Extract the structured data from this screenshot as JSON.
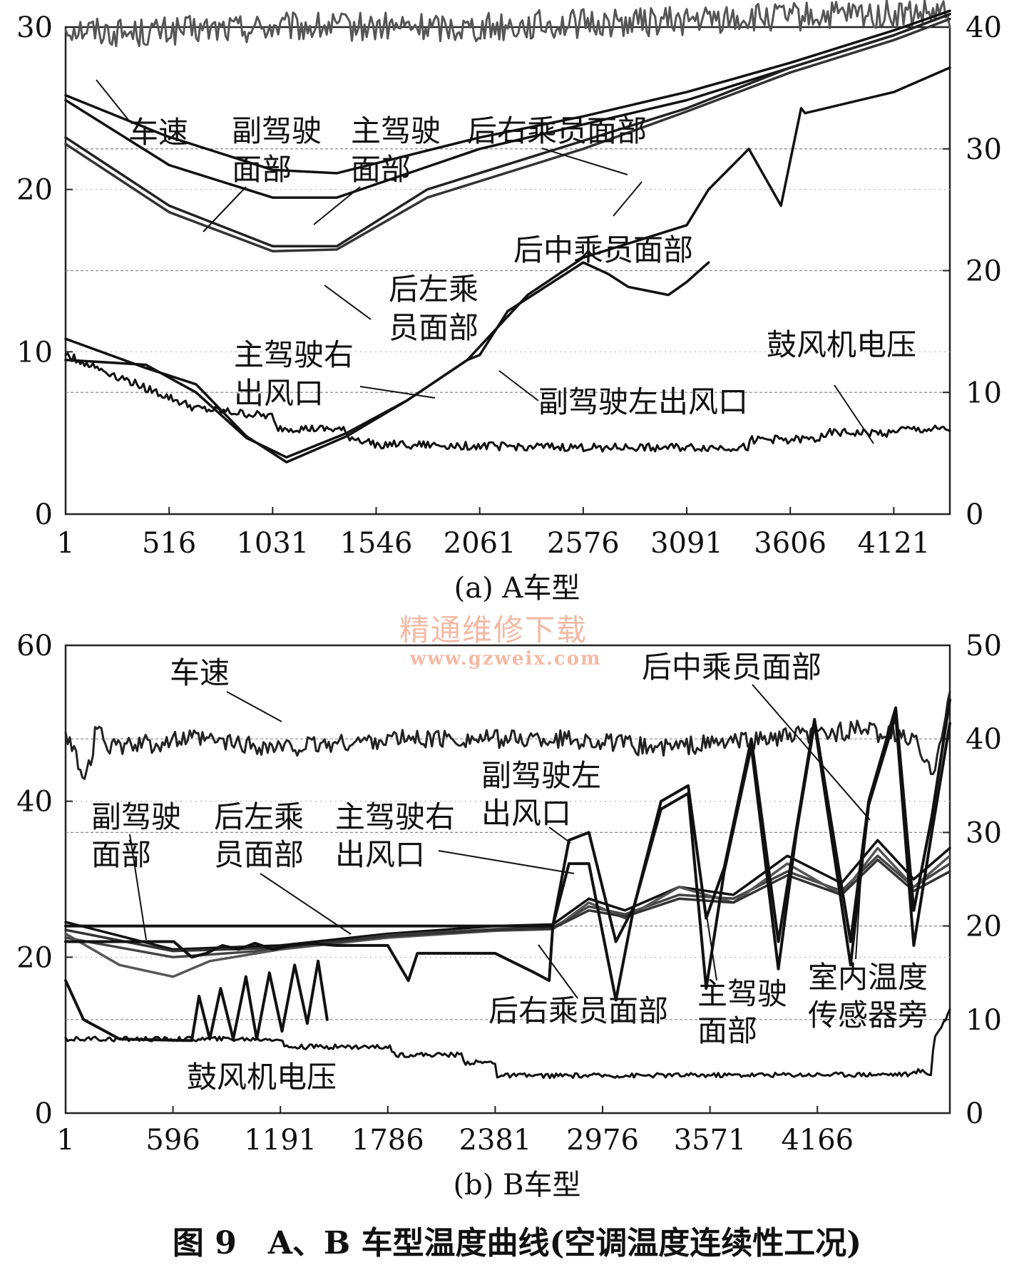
{
  "figure_title": "图 9　A、B 车型温度曲线(空调温度连续性工况)",
  "watermark": {
    "line1": "精通维修下载",
    "line2": "www.gzweix.com"
  },
  "chart_data": [
    {
      "type": "line",
      "caption": "(a) A车型",
      "x_ticks": [
        "1",
        "516",
        "1031",
        "1546",
        "2061",
        "2576",
        "3091",
        "3606",
        "4121"
      ],
      "xlim": [
        1,
        4400
      ],
      "y_left_ticks": [
        "0",
        "10",
        "20",
        "30"
      ],
      "ylim_left": [
        0,
        30
      ],
      "y_right_ticks": [
        "0",
        "10",
        "20",
        "30",
        "40"
      ],
      "ylim_right": [
        0,
        40
      ],
      "grid": true,
      "labels": {
        "speed": "车速",
        "pass_face": [
          "副驾驶",
          "面部"
        ],
        "driver_face": [
          "主驾驶",
          "面部"
        ],
        "rear_right": "后右乘员面部",
        "rear_mid": "后中乘员面部",
        "rear_left": [
          "后左乘",
          "员面部"
        ],
        "driver_right_vent": [
          "主驾驶右",
          "出风口"
        ],
        "pass_left_vent": "副驾驶左出风口",
        "blower": "鼓风机电压"
      },
      "series": [
        {
          "key": "speed",
          "axis": "right",
          "noise": 1.2,
          "width": 3,
          "color": "#555555",
          "x": [
            1,
            300,
            1000,
            2000,
            3000,
            4000,
            4400
          ],
          "y": [
            40,
            39.5,
            40,
            40,
            40.5,
            41,
            41
          ]
        },
        {
          "key": "rear_right",
          "axis": "left",
          "noise": 0,
          "width": 3.5,
          "color": "#111111",
          "x": [
            1,
            500,
            1031,
            1350,
            2061,
            2576,
            3091,
            3606,
            4121,
            4400
          ],
          "y": [
            25.8,
            23.3,
            21.2,
            21.0,
            23.2,
            24.5,
            26.0,
            27.8,
            29.8,
            31.0
          ]
        },
        {
          "key": "pass_face",
          "axis": "left",
          "noise": 0,
          "width": 3.5,
          "color": "#111111",
          "x": [
            1,
            516,
            1031,
            1350,
            2061,
            2576,
            3091,
            3606,
            4121,
            4400
          ],
          "y": [
            25.5,
            21.5,
            19.5,
            19.5,
            22.5,
            24.0,
            25.5,
            27.5,
            29.5,
            30.8
          ]
        },
        {
          "key": "rear_mid",
          "axis": "left",
          "noise": 0,
          "width": 3.5,
          "color": "#222222",
          "x": [
            1,
            516,
            1031,
            1350,
            1800,
            2576,
            3091,
            3606,
            4121,
            4400
          ],
          "y": [
            23.2,
            19.0,
            16.5,
            16.5,
            20.0,
            23.0,
            25.0,
            27.5,
            29.5,
            30.8
          ]
        },
        {
          "key": "rear_left",
          "axis": "left",
          "noise": 0,
          "width": 3.5,
          "color": "#333333",
          "x": [
            1,
            516,
            1031,
            1350,
            1800,
            2576,
            3091,
            3606,
            4121,
            4400
          ],
          "y": [
            22.8,
            18.6,
            16.2,
            16.3,
            19.5,
            22.5,
            24.8,
            27.2,
            29.2,
            30.5
          ]
        },
        {
          "key": "driver_right_vent",
          "axis": "left",
          "noise": 0,
          "width": 3.5,
          "color": "#111111",
          "x": [
            1,
            400,
            650,
            900,
            1100,
            1400,
            1700,
            2000,
            2300,
            2576,
            3091,
            3200,
            3400,
            3560,
            3660,
            3680,
            4121,
            4400
          ],
          "y": [
            10.8,
            9.0,
            8.0,
            4.8,
            3.2,
            4.8,
            7.0,
            9.5,
            13.5,
            15.8,
            17.8,
            20.0,
            22.5,
            19.0,
            25.0,
            24.7,
            26.0,
            27.5
          ]
        },
        {
          "key": "pass_left_vent",
          "axis": "left",
          "noise": 0,
          "width": 3.5,
          "color": "#111111",
          "x": [
            1,
            400,
            650,
            900,
            1100,
            1400,
            1700,
            2000,
            2061,
            2200,
            2576,
            2700,
            2800,
            3000,
            3091,
            3200
          ],
          "y": [
            9.5,
            9.2,
            7.5,
            4.7,
            3.5,
            5.0,
            7.0,
            9.5,
            9.8,
            12.5,
            15.5,
            14.8,
            14.0,
            13.5,
            14.3,
            15.5
          ]
        },
        {
          "key": "blower",
          "axis": "left",
          "noise": 0.25,
          "width": 3,
          "color": "#111111",
          "x": [
            1,
            650,
            1031,
            1046,
            1380,
            1400,
            1546,
            2576,
            3400,
            3410,
            3750,
            3760,
            4121,
            4130,
            4400
          ],
          "y": [
            9.8,
            6.5,
            6.0,
            5.3,
            5.2,
            4.8,
            4.3,
            4.1,
            4.1,
            4.6,
            4.6,
            5.0,
            5.0,
            5.2,
            5.2
          ]
        }
      ]
    },
    {
      "type": "line",
      "caption": "(b) B车型",
      "x_ticks": [
        "1",
        "596",
        "1191",
        "1786",
        "2381",
        "2976",
        "3571",
        "4166"
      ],
      "xlim": [
        1,
        4900
      ],
      "y_left_ticks": [
        "0",
        "20",
        "40",
        "60"
      ],
      "ylim_left": [
        0,
        60
      ],
      "y_right_ticks": [
        "0",
        "10",
        "20",
        "30",
        "40",
        "50"
      ],
      "ylim_right": [
        0,
        50
      ],
      "grid": true,
      "labels": {
        "speed": "车速",
        "pass_face": [
          "副驾驶",
          "面部"
        ],
        "rear_left": [
          "后左乘",
          "员面部"
        ],
        "driver_right_vent": [
          "主驾驶右",
          "出风口"
        ],
        "pass_left_vent": [
          "副驾驶左",
          "出风口"
        ],
        "rear_mid": "后中乘员面部",
        "rear_right": "后右乘员面部",
        "driver_face": [
          "主驾驶",
          "面部"
        ],
        "cabin_sensor": [
          "室内温度",
          "传感器旁"
        ],
        "blower": "鼓风机电压"
      },
      "series": [
        {
          "key": "speed",
          "axis": "right",
          "noise": 1.0,
          "width": 3,
          "color": "#222222",
          "x": [
            1,
            120,
            180,
            250,
            700,
            1200,
            1800,
            2300,
            2800,
            3300,
            3900,
            4400,
            4700,
            4800,
            4900
          ],
          "y": [
            40,
            36,
            42,
            39,
            40,
            39,
            40,
            40,
            40,
            39,
            40,
            41,
            40,
            36,
            45
          ]
        },
        {
          "key": "pass_face",
          "axis": "left",
          "noise": 0,
          "width": 3.5,
          "color": "#111111",
          "x": [
            1,
            596,
            1191,
            1786,
            2381,
            2700,
            2900,
            3100,
            3400,
            3700,
            4000,
            4300,
            4500,
            4700,
            4900
          ],
          "y": [
            24.5,
            21.0,
            21.5,
            23.0,
            24.0,
            24.2,
            27.5,
            26.0,
            29.0,
            28.0,
            33.0,
            29.5,
            35.0,
            30.0,
            34.0
          ]
        },
        {
          "key": "rear_left",
          "axis": "left",
          "noise": 0,
          "width": 3.5,
          "color": "#444444",
          "x": [
            1,
            596,
            1191,
            1786,
            2381,
            2700,
            2900,
            3100,
            3400,
            3700,
            4000,
            4300,
            4500,
            4700,
            4900
          ],
          "y": [
            22.5,
            20.0,
            21.0,
            22.8,
            23.6,
            23.8,
            26.5,
            25.5,
            28.0,
            27.5,
            31.0,
            28.5,
            33.0,
            29.0,
            32.0
          ]
        },
        {
          "key": "rear_mid",
          "axis": "left",
          "noise": 0,
          "width": 3.5,
          "color": "#555555",
          "x": [
            1,
            300,
            596,
            800,
            1191,
            1786,
            2381,
            2700,
            2900,
            3100,
            3400,
            3700,
            4000,
            4300,
            4500,
            4700,
            4900
          ],
          "y": [
            23.0,
            19.0,
            17.5,
            19.5,
            21.0,
            22.5,
            23.4,
            23.6,
            27.0,
            25.0,
            29.0,
            27.0,
            32.0,
            28.0,
            34.0,
            29.0,
            33.0
          ]
        },
        {
          "key": "rear_right",
          "axis": "left",
          "noise": 0,
          "width": 3.5,
          "color": "#333333",
          "x": [
            1,
            596,
            1191,
            1786,
            2381,
            2700,
            2900,
            3100,
            3400,
            3700,
            4000,
            4300,
            4500,
            4700,
            4900
          ],
          "y": [
            23.5,
            20.8,
            21.2,
            22.7,
            23.5,
            23.7,
            26.0,
            25.2,
            27.5,
            27.0,
            30.5,
            28.0,
            32.5,
            28.5,
            31.0
          ]
        },
        {
          "key": "pass_left_vent",
          "axis": "left",
          "noise": 0,
          "width": 4,
          "color": "#111111",
          "x": [
            1,
            2700,
            2790,
            2900,
            3050,
            3150,
            3300,
            3450,
            3550,
            3650,
            3800,
            3950,
            4050,
            4150,
            4350,
            4450,
            4600,
            4700,
            4800,
            4900
          ],
          "y": [
            24.0,
            24.0,
            35.0,
            36.0,
            22.0,
            26.5,
            40.0,
            42.0,
            25.0,
            31.5,
            48.0,
            22.0,
            36.5,
            50.5,
            22.0,
            40.0,
            52.0,
            26.0,
            38.0,
            53.0
          ]
        },
        {
          "key": "driver_right_vent",
          "axis": "left",
          "noise": 0,
          "width": 4,
          "color": "#111111",
          "x": [
            1,
            600,
            700,
            780,
            870,
            960,
            1050,
            1150,
            1250,
            1350,
            1500,
            1786,
            1900,
            1950,
            2100,
            2381,
            2600,
            2680,
            2700,
            2790,
            2900,
            3050,
            3150,
            3300,
            3450,
            3550,
            3650,
            3800,
            3950,
            4050,
            4150,
            4350,
            4450,
            4600,
            4700,
            4800,
            4900
          ],
          "y": [
            22.0,
            22.0,
            20.0,
            20.5,
            21.5,
            21.0,
            21.8,
            21.0,
            21.5,
            21.8,
            21.5,
            21.5,
            17.0,
            20.5,
            20.5,
            20.5,
            18.0,
            17.0,
            24.0,
            32.0,
            32.0,
            14.5,
            26.5,
            39.0,
            41.0,
            16.0,
            31.0,
            47.0,
            18.5,
            36.0,
            50.0,
            19.0,
            39.5,
            51.0,
            21.5,
            36.0,
            50.0
          ]
        },
        {
          "key": "cabin_sensor",
          "axis": "left",
          "noise": 0,
          "width": 4,
          "color": "#111111",
          "x": [
            1,
            100,
            300,
            700,
            740,
            800,
            860,
            930,
            1000,
            1060,
            1130,
            1200,
            1270,
            1340,
            1400,
            1450
          ],
          "y": [
            17.0,
            12.0,
            9.5,
            9.3,
            15.0,
            9.5,
            16.0,
            9.5,
            17.5,
            9.5,
            18.0,
            10.5,
            19.0,
            11.5,
            19.5,
            12.0
          ]
        },
        {
          "key": "blower",
          "axis": "left",
          "noise": 0.3,
          "width": 3,
          "color": "#111111",
          "x": [
            1,
            1200,
            1210,
            1800,
            1810,
            2200,
            2210,
            2381,
            2391,
            2900,
            2910,
            4700,
            4720,
            4800,
            4810,
            4900
          ],
          "y": [
            9.5,
            9.5,
            8.5,
            8.5,
            7.5,
            7.5,
            6.5,
            6.5,
            4.8,
            4.8,
            4.8,
            5.0,
            5.5,
            5.0,
            9.5,
            13.0
          ]
        }
      ]
    }
  ]
}
